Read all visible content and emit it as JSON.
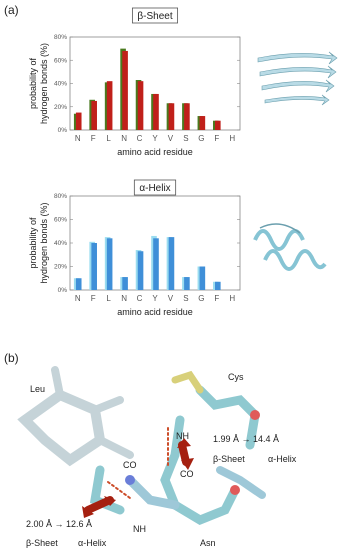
{
  "panel_labels": [
    "(a)",
    "(b)"
  ],
  "chart_data": [
    {
      "type": "bar",
      "title": "β-Sheet",
      "xlabel": "amino acid residue",
      "ylabel": [
        "probability of",
        "hydrogen bonds (%)"
      ],
      "categories": [
        "N",
        "F",
        "L",
        "N",
        "C",
        "Y",
        "V",
        "S",
        "G",
        "F",
        "H"
      ],
      "series": [
        {
          "color": "#4a7a1e",
          "values": [
            14,
            26,
            41,
            70,
            43,
            31,
            23,
            23,
            12,
            8,
            null
          ]
        },
        {
          "color": "#c0201a",
          "values": [
            15,
            25,
            42,
            68,
            42,
            31,
            23,
            23,
            12,
            8,
            null
          ]
        }
      ],
      "ylim": [
        0,
        80
      ],
      "yticks": [
        {
          "value": 0,
          "label": "0%"
        },
        {
          "value": 20,
          "label": "20%"
        },
        {
          "value": 40,
          "label": "40%"
        },
        {
          "value": 60,
          "label": "60%"
        },
        {
          "value": 80,
          "label": "80%"
        }
      ]
    },
    {
      "type": "bar",
      "title": "α-Helix",
      "xlabel": "amino acid residue",
      "ylabel": [
        "probability of",
        "hydrogen bonds (%)"
      ],
      "categories": [
        "N",
        "F",
        "L",
        "N",
        "C",
        "Y",
        "V",
        "S",
        "G",
        "F",
        "H"
      ],
      "series": [
        {
          "color": "#9adcf0",
          "values": [
            10,
            41,
            45,
            11,
            34,
            46,
            45,
            11,
            20,
            7,
            null
          ]
        },
        {
          "color": "#3f8fd8",
          "values": [
            10,
            40,
            44,
            11,
            33,
            44,
            45,
            11,
            20,
            7,
            null
          ]
        }
      ],
      "ylim": [
        0,
        80
      ],
      "yticks": [
        {
          "value": 0,
          "label": "0%"
        },
        {
          "value": 20,
          "label": "20%"
        },
        {
          "value": 40,
          "label": "40%"
        },
        {
          "value": 60,
          "label": "60%"
        },
        {
          "value": 80,
          "label": "80%"
        }
      ]
    }
  ],
  "molecule": {
    "residues": [
      "Leu",
      "Cys",
      "Asn"
    ],
    "upper_bond": {
      "nh": "NH",
      "co": "CO",
      "distance": "1.99 Å → 14.4 Å",
      "from": "β-Sheet",
      "to": "α-Helix"
    },
    "lower_bond": {
      "nh": "NH",
      "co": "CO",
      "distance": "2.00 Å → 12.6 Å",
      "from": "β-Sheet",
      "to": "α-Helix"
    }
  }
}
